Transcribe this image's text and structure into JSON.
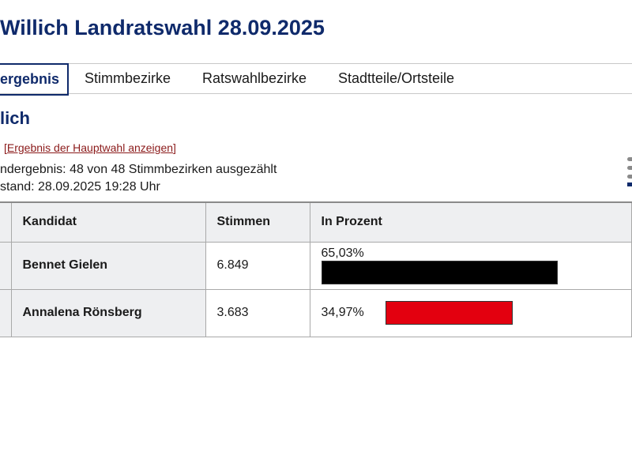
{
  "header": {
    "title": "Willich Landratswahl 28.09.2025"
  },
  "tabs": [
    {
      "label": "ergebnis",
      "active": true
    },
    {
      "label": "Stimmbezirke"
    },
    {
      "label": "Ratswahlbezirke"
    },
    {
      "label": "Stadtteile/Ortsteile"
    }
  ],
  "section": {
    "heading": "lich",
    "link": "Ergebnis der Hauptwahl anzeigen",
    "status_line": "ndergebnis: 48 von 48 Stimmbezirken ausgezählt",
    "timestamp_line": "stand: 28.09.2025 19:28 Uhr",
    "menu_icon": "list-icon"
  },
  "table": {
    "headers": [
      "Kandidat",
      "Stimmen",
      "In Prozent"
    ],
    "rows": [
      {
        "name": "Bennet Gielen",
        "votes": "6.849",
        "percent": "65,03%",
        "percent_value": 65.03,
        "color": "#000000"
      },
      {
        "name": "Annalena Rönsberg",
        "votes": "3.683",
        "percent": "34,97%",
        "percent_value": 34.97,
        "color": "#e3000f"
      }
    ]
  },
  "colors": {
    "brand": "#0f2a6b",
    "link": "#8b1a1a"
  }
}
